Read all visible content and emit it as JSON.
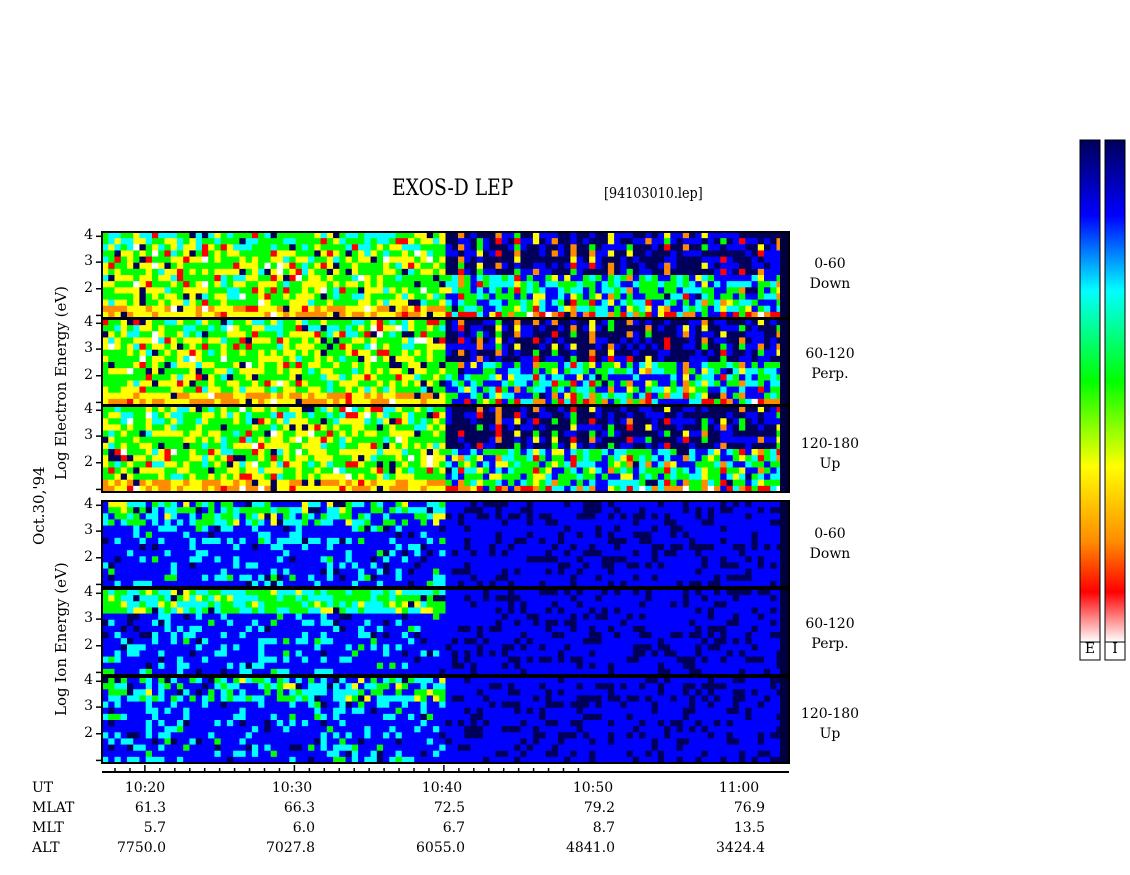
{
  "chart_data": {
    "type": "heatmap",
    "title": "EXOS-D LEP",
    "filename": "[94103010.lep]",
    "date_label": "Oct.30,'94",
    "electron_ylabel": [
      "Log",
      "Electron",
      "Energy",
      "(eV)"
    ],
    "ion_ylabel": [
      "Log",
      "Ion",
      "Energy",
      "(eV)"
    ],
    "yticks": [
      "4",
      "3",
      "2"
    ],
    "panels": [
      {
        "species": "electron",
        "pitch_range": "0-60",
        "direction": "Down"
      },
      {
        "species": "electron",
        "pitch_range": "60-120",
        "direction": "Perp."
      },
      {
        "species": "electron",
        "pitch_range": "120-180",
        "direction": "Up"
      },
      {
        "species": "ion",
        "pitch_range": "0-60",
        "direction": "Down"
      },
      {
        "species": "ion",
        "pitch_range": "60-120",
        "direction": "Perp."
      },
      {
        "species": "ion",
        "pitch_range": "120-180",
        "direction": "Up"
      }
    ],
    "x_ticks": [
      "10:20",
      "10:30",
      "10:40",
      "10:50",
      "11:00"
    ],
    "rows": [
      {
        "label": "UT",
        "values": []
      },
      {
        "label": "MLAT",
        "values": [
          "61.3",
          "66.3",
          "72.5",
          "79.2",
          "76.9"
        ]
      },
      {
        "label": "MLT",
        "values": [
          "5.7",
          "6.0",
          "6.7",
          "8.7",
          "13.5"
        ]
      },
      {
        "label": "ALT",
        "values": [
          "7750.0",
          "7027.8",
          "6055.0",
          "4841.0",
          "3424.4"
        ]
      }
    ],
    "colorbars": [
      {
        "label": "E"
      },
      {
        "label": "I"
      }
    ],
    "colorscale": [
      "#00005a",
      "#0000ff",
      "#00ffff",
      "#00ff00",
      "#ffff00",
      "#ff8c00",
      "#ff0000",
      "#ffffff"
    ]
  }
}
